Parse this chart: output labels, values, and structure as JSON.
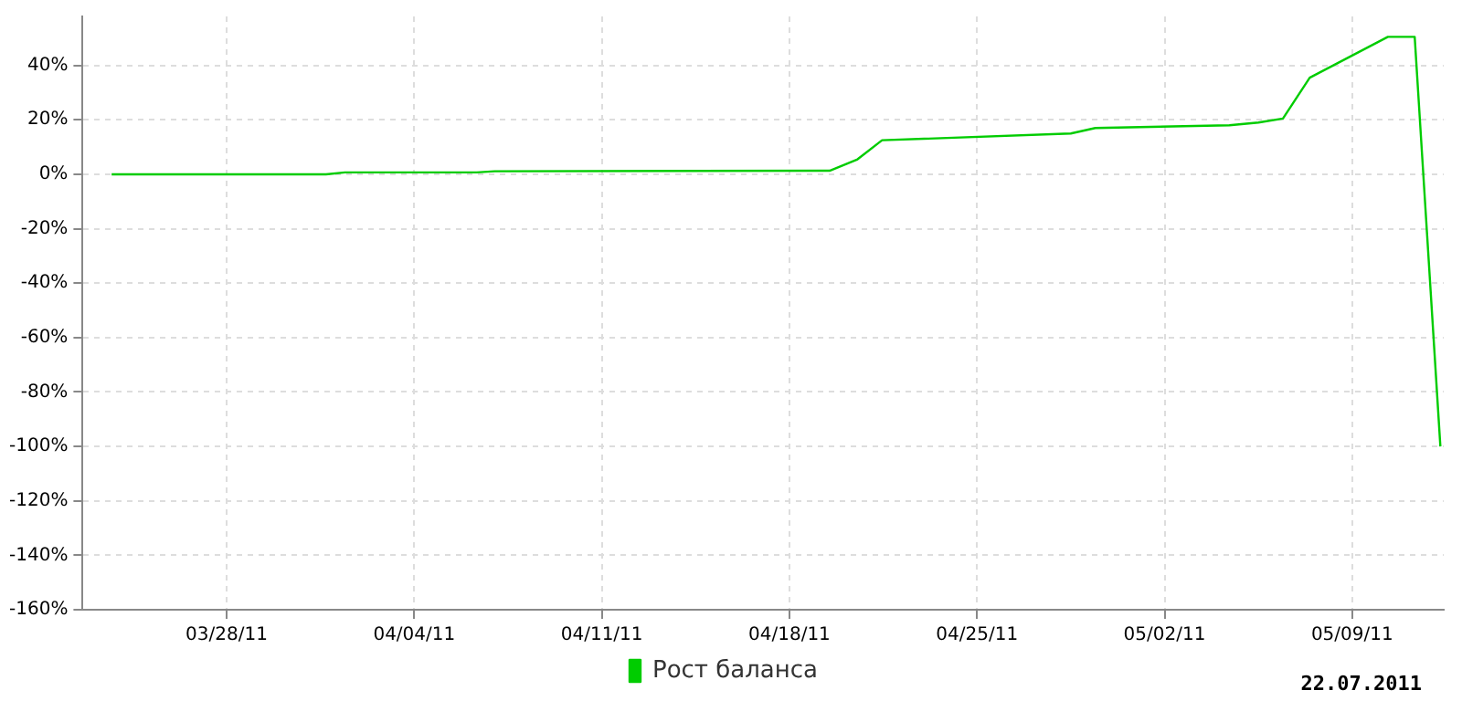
{
  "chart_data": {
    "type": "line",
    "annotations": [
      "22.07.2011"
    ],
    "x": [
      "2011-03-23T17:00",
      "2011-03-31T17:00",
      "2011-04-01T10:00",
      "2011-04-06T08:00",
      "2011-04-07T00:00",
      "2011-04-19T12:00",
      "2011-04-20T13:00",
      "2011-04-21T11:00",
      "2011-04-28T12:00",
      "2011-04-29T10:00",
      "2011-05-04T10:00",
      "2011-05-05T12:00",
      "2011-05-06T10:00",
      "2011-05-07T10:00",
      "2011-05-10T08:00",
      "2011-05-11T08:00",
      "2011-05-12T07:00"
    ],
    "series": [
      {
        "name": "Рост баланса",
        "color": "#00cc00",
        "values": [
          0,
          0,
          0.7,
          0.7,
          1.1,
          1.3,
          5.5,
          12.5,
          15,
          17,
          18,
          19,
          20.5,
          35.5,
          50.5,
          50.5,
          -100
        ]
      }
    ],
    "xlim": [
      "2011-03-22T15:00",
      "2011-05-12T10:00"
    ],
    "xticks": [
      {
        "value": "2011-03-28",
        "label": "03/28/11"
      },
      {
        "value": "2011-04-04",
        "label": "04/04/11"
      },
      {
        "value": "2011-04-11",
        "label": "04/11/11"
      },
      {
        "value": "2011-04-18",
        "label": "04/18/11"
      },
      {
        "value": "2011-04-25",
        "label": "04/25/11"
      },
      {
        "value": "2011-05-02",
        "label": "05/02/11"
      },
      {
        "value": "2011-05-09",
        "label": "05/09/11"
      }
    ],
    "ylim": [
      -160,
      58
    ],
    "yticks": [
      {
        "value": -160,
        "label": "-160%"
      },
      {
        "value": -140,
        "label": "-140%"
      },
      {
        "value": -120,
        "label": "-120%"
      },
      {
        "value": -100,
        "label": "-100%"
      },
      {
        "value": -80,
        "label": "-80%"
      },
      {
        "value": -60,
        "label": "-60%"
      },
      {
        "value": -40,
        "label": "-40%"
      },
      {
        "value": -20,
        "label": "-20%"
      },
      {
        "value": 0,
        "label": "0%"
      },
      {
        "value": 20,
        "label": "20%"
      },
      {
        "value": 40,
        "label": "40%"
      }
    ],
    "grid": true,
    "legend": "bottom",
    "marker": "none",
    "line_style": "solid"
  }
}
